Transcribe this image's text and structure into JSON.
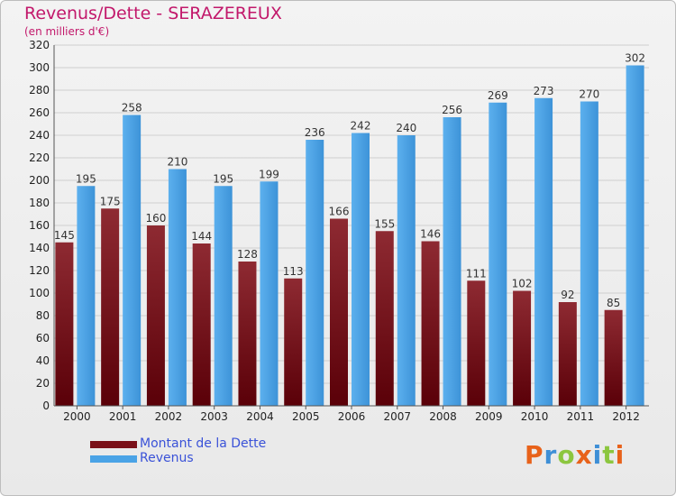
{
  "header": {
    "title": "Revenus/Dette - SERAZEREUX",
    "subtitle": "(en milliers d'€)"
  },
  "legend": {
    "dette_label": "Montant de la Dette",
    "revenus_label": "Revenus"
  },
  "logo": {
    "text": "Proxiti"
  },
  "colors": {
    "dette": "#7a1018",
    "revenus": "#4aa3e6",
    "title": "#c2186b",
    "legend_text": "#3a52d8"
  },
  "chart_data": {
    "type": "bar",
    "title": "Revenus/Dette - SERAZEREUX",
    "subtitle": "(en milliers d'€)",
    "xlabel": "",
    "ylabel": "",
    "ylim": [
      0,
      320
    ],
    "yticks": [
      0,
      20,
      40,
      60,
      80,
      100,
      120,
      140,
      160,
      180,
      200,
      220,
      240,
      260,
      280,
      300,
      320
    ],
    "grid": true,
    "legend_position": "bottom-left",
    "categories": [
      "2000",
      "2001",
      "2002",
      "2003",
      "2004",
      "2005",
      "2006",
      "2007",
      "2008",
      "2009",
      "2010",
      "2011",
      "2012"
    ],
    "series": [
      {
        "name": "Montant de la Dette",
        "values": [
          145,
          175,
          160,
          144,
          128,
          113,
          166,
          155,
          146,
          111,
          102,
          92,
          85
        ]
      },
      {
        "name": "Revenus",
        "values": [
          195,
          258,
          210,
          195,
          199,
          236,
          242,
          240,
          256,
          269,
          273,
          270,
          302
        ]
      }
    ]
  }
}
